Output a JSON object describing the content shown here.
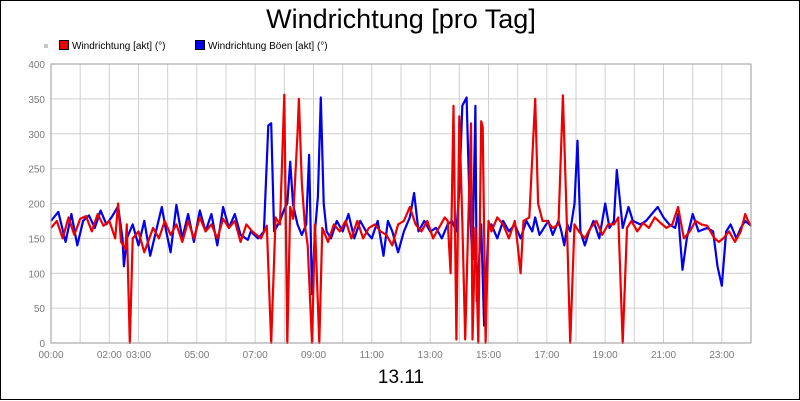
{
  "chart_data": {
    "type": "line",
    "title": "Windrichtung [pro Tag]",
    "xlabel": "13.11",
    "ylabel": "",
    "ylim": [
      0,
      400
    ],
    "yticks": [
      0,
      50,
      100,
      150,
      200,
      250,
      300,
      350,
      400
    ],
    "xlim": [
      0,
      24
    ],
    "xticks": [
      {
        "value": 0,
        "label": "00:00"
      },
      {
        "value": 2,
        "label": "02:00"
      },
      {
        "value": 3,
        "label": "03:00"
      },
      {
        "value": 5,
        "label": "05:00"
      },
      {
        "value": 7,
        "label": "07:00"
      },
      {
        "value": 9,
        "label": "09:00"
      },
      {
        "value": 11,
        "label": "11:00"
      },
      {
        "value": 13,
        "label": "13:00"
      },
      {
        "value": 15,
        "label": "15:00"
      },
      {
        "value": 17,
        "label": "17:00"
      },
      {
        "value": 19,
        "label": "19:00"
      },
      {
        "value": 21,
        "label": "21:00"
      },
      {
        "value": 23,
        "label": "23:00"
      }
    ],
    "grid": true,
    "legend_position": "top-left",
    "series": [
      {
        "name": "Windrichtung Böen [akt] (°)",
        "color": "#0000ee",
        "points": [
          [
            0.0,
            175
          ],
          [
            0.25,
            188
          ],
          [
            0.5,
            145
          ],
          [
            0.7,
            185
          ],
          [
            0.9,
            140
          ],
          [
            1.1,
            175
          ],
          [
            1.3,
            183
          ],
          [
            1.5,
            165
          ],
          [
            1.7,
            190
          ],
          [
            1.9,
            170
          ],
          [
            2.1,
            182
          ],
          [
            2.3,
            196
          ],
          [
            2.45,
            150
          ],
          [
            2.5,
            110
          ],
          [
            2.6,
            150
          ],
          [
            2.8,
            170
          ],
          [
            3.0,
            140
          ],
          [
            3.2,
            175
          ],
          [
            3.4,
            125
          ],
          [
            3.6,
            160
          ],
          [
            3.8,
            195
          ],
          [
            3.95,
            160
          ],
          [
            4.1,
            130
          ],
          [
            4.3,
            198
          ],
          [
            4.5,
            150
          ],
          [
            4.7,
            185
          ],
          [
            4.9,
            145
          ],
          [
            5.1,
            190
          ],
          [
            5.3,
            160
          ],
          [
            5.5,
            185
          ],
          [
            5.7,
            140
          ],
          [
            5.9,
            195
          ],
          [
            6.1,
            165
          ],
          [
            6.3,
            185
          ],
          [
            6.5,
            155
          ],
          [
            6.75,
            148
          ],
          [
            6.85,
            160
          ],
          [
            7.1,
            150
          ],
          [
            7.3,
            160
          ],
          [
            7.45,
            312
          ],
          [
            7.55,
            315
          ],
          [
            7.65,
            160
          ],
          [
            7.85,
            175
          ],
          [
            8.0,
            192
          ],
          [
            8.1,
            200
          ],
          [
            8.2,
            260
          ],
          [
            8.3,
            198
          ],
          [
            8.45,
            170
          ],
          [
            8.6,
            155
          ],
          [
            8.75,
            170
          ],
          [
            8.85,
            270
          ],
          [
            8.95,
            70
          ],
          [
            9.05,
            160
          ],
          [
            9.15,
            210
          ],
          [
            9.25,
            352
          ],
          [
            9.35,
            200
          ],
          [
            9.45,
            160
          ],
          [
            9.6,
            150
          ],
          [
            9.8,
            175
          ],
          [
            10.0,
            160
          ],
          [
            10.2,
            185
          ],
          [
            10.4,
            150
          ],
          [
            10.6,
            175
          ],
          [
            10.8,
            160
          ],
          [
            11.0,
            150
          ],
          [
            11.2,
            175
          ],
          [
            11.4,
            125
          ],
          [
            11.55,
            175
          ],
          [
            11.7,
            160
          ],
          [
            11.9,
            130
          ],
          [
            12.1,
            160
          ],
          [
            12.3,
            180
          ],
          [
            12.45,
            215
          ],
          [
            12.6,
            160
          ],
          [
            12.8,
            175
          ],
          [
            13.0,
            160
          ],
          [
            13.2,
            165
          ],
          [
            13.4,
            150
          ],
          [
            13.6,
            170
          ],
          [
            13.75,
            175
          ],
          [
            13.9,
            160
          ],
          [
            14.0,
            220
          ],
          [
            14.1,
            340
          ],
          [
            14.25,
            352
          ],
          [
            14.35,
            200
          ],
          [
            14.45,
            120
          ],
          [
            14.55,
            340
          ],
          [
            14.6,
            60
          ],
          [
            14.75,
            170
          ],
          [
            14.85,
            25
          ],
          [
            15.0,
            165
          ],
          [
            15.1,
            170
          ],
          [
            15.3,
            150
          ],
          [
            15.5,
            175
          ],
          [
            15.7,
            160
          ],
          [
            15.9,
            170
          ],
          [
            16.1,
            150
          ],
          [
            16.3,
            175
          ],
          [
            16.5,
            160
          ],
          [
            16.6,
            180
          ],
          [
            16.75,
            155
          ],
          [
            16.9,
            165
          ],
          [
            17.05,
            175
          ],
          [
            17.2,
            155
          ],
          [
            17.4,
            175
          ],
          [
            17.5,
            160
          ],
          [
            17.6,
            140
          ],
          [
            17.7,
            170
          ],
          [
            17.8,
            160
          ],
          [
            17.95,
            200
          ],
          [
            18.05,
            290
          ],
          [
            18.15,
            160
          ],
          [
            18.3,
            140
          ],
          [
            18.45,
            160
          ],
          [
            18.6,
            175
          ],
          [
            18.8,
            150
          ],
          [
            19.0,
            200
          ],
          [
            19.15,
            165
          ],
          [
            19.3,
            175
          ],
          [
            19.4,
            248
          ],
          [
            19.6,
            165
          ],
          [
            19.8,
            195
          ],
          [
            19.95,
            175
          ],
          [
            20.2,
            170
          ],
          [
            20.4,
            175
          ],
          [
            20.6,
            185
          ],
          [
            20.8,
            195
          ],
          [
            21.0,
            180
          ],
          [
            21.2,
            170
          ],
          [
            21.4,
            165
          ],
          [
            21.5,
            185
          ],
          [
            21.65,
            105
          ],
          [
            21.8,
            150
          ],
          [
            22.0,
            185
          ],
          [
            22.2,
            160
          ],
          [
            22.5,
            165
          ],
          [
            22.7,
            160
          ],
          [
            22.85,
            110
          ],
          [
            23.0,
            82
          ],
          [
            23.15,
            160
          ],
          [
            23.3,
            170
          ],
          [
            23.5,
            150
          ],
          [
            23.65,
            165
          ],
          [
            23.8,
            175
          ],
          [
            24.0,
            168
          ]
        ]
      },
      {
        "name": "Windrichtung [akt] (°)",
        "color": "#ee0000",
        "points": [
          [
            0.0,
            165
          ],
          [
            0.2,
            175
          ],
          [
            0.4,
            150
          ],
          [
            0.6,
            180
          ],
          [
            0.8,
            155
          ],
          [
            1.0,
            178
          ],
          [
            1.2,
            182
          ],
          [
            1.4,
            160
          ],
          [
            1.6,
            185
          ],
          [
            1.8,
            168
          ],
          [
            2.0,
            175
          ],
          [
            2.2,
            150
          ],
          [
            2.3,
            200
          ],
          [
            2.4,
            145
          ],
          [
            2.55,
            135
          ],
          [
            2.6,
            170
          ],
          [
            2.7,
            0
          ],
          [
            2.8,
            150
          ],
          [
            3.0,
            160
          ],
          [
            3.2,
            130
          ],
          [
            3.5,
            165
          ],
          [
            3.7,
            150
          ],
          [
            3.9,
            175
          ],
          [
            4.1,
            155
          ],
          [
            4.3,
            170
          ],
          [
            4.5,
            145
          ],
          [
            4.7,
            175
          ],
          [
            4.9,
            150
          ],
          [
            5.1,
            180
          ],
          [
            5.3,
            160
          ],
          [
            5.5,
            170
          ],
          [
            5.7,
            150
          ],
          [
            5.9,
            178
          ],
          [
            6.1,
            165
          ],
          [
            6.3,
            175
          ],
          [
            6.5,
            145
          ],
          [
            6.7,
            170
          ],
          [
            6.9,
            160
          ],
          [
            7.2,
            150
          ],
          [
            7.4,
            168
          ],
          [
            7.55,
            0
          ],
          [
            7.7,
            180
          ],
          [
            7.85,
            170
          ],
          [
            8.0,
            356
          ],
          [
            8.1,
            0
          ],
          [
            8.2,
            195
          ],
          [
            8.3,
            178
          ],
          [
            8.45,
            300
          ],
          [
            8.5,
            350
          ],
          [
            8.6,
            230
          ],
          [
            8.7,
            170
          ],
          [
            8.8,
            140
          ],
          [
            8.95,
            0
          ],
          [
            9.05,
            170
          ],
          [
            9.2,
            0
          ],
          [
            9.3,
            165
          ],
          [
            9.5,
            145
          ],
          [
            9.7,
            170
          ],
          [
            9.9,
            160
          ],
          [
            10.1,
            175
          ],
          [
            10.3,
            150
          ],
          [
            10.5,
            175
          ],
          [
            10.7,
            150
          ],
          [
            10.9,
            165
          ],
          [
            11.1,
            170
          ],
          [
            11.3,
            160
          ],
          [
            11.5,
            155
          ],
          [
            11.7,
            140
          ],
          [
            11.9,
            170
          ],
          [
            12.1,
            175
          ],
          [
            12.3,
            195
          ],
          [
            12.5,
            170
          ],
          [
            12.7,
            160
          ],
          [
            12.9,
            175
          ],
          [
            13.1,
            150
          ],
          [
            13.3,
            165
          ],
          [
            13.5,
            180
          ],
          [
            13.6,
            175
          ],
          [
            13.7,
            100
          ],
          [
            13.8,
            340
          ],
          [
            13.9,
            5
          ],
          [
            14.0,
            325
          ],
          [
            14.1,
            175
          ],
          [
            14.2,
            5
          ],
          [
            14.3,
            165
          ],
          [
            14.4,
            315
          ],
          [
            14.45,
            5
          ],
          [
            14.55,
            165
          ],
          [
            14.65,
            0
          ],
          [
            14.75,
            318
          ],
          [
            14.8,
            310
          ],
          [
            14.9,
            0
          ],
          [
            15.0,
            175
          ],
          [
            15.1,
            160
          ],
          [
            15.3,
            180
          ],
          [
            15.5,
            170
          ],
          [
            15.7,
            150
          ],
          [
            15.9,
            175
          ],
          [
            16.0,
            140
          ],
          [
            16.1,
            100
          ],
          [
            16.2,
            175
          ],
          [
            16.4,
            180
          ],
          [
            16.6,
            350
          ],
          [
            16.7,
            200
          ],
          [
            16.85,
            175
          ],
          [
            17.0,
            175
          ],
          [
            17.2,
            165
          ],
          [
            17.4,
            170
          ],
          [
            17.55,
            355
          ],
          [
            17.7,
            150
          ],
          [
            17.8,
            0
          ],
          [
            17.95,
            170
          ],
          [
            18.1,
            160
          ],
          [
            18.3,
            150
          ],
          [
            18.5,
            165
          ],
          [
            18.7,
            175
          ],
          [
            18.9,
            155
          ],
          [
            19.1,
            170
          ],
          [
            19.3,
            170
          ],
          [
            19.45,
            180
          ],
          [
            19.6,
            0
          ],
          [
            19.75,
            165
          ],
          [
            19.9,
            175
          ],
          [
            20.1,
            160
          ],
          [
            20.3,
            172
          ],
          [
            20.5,
            165
          ],
          [
            20.7,
            180
          ],
          [
            20.9,
            172
          ],
          [
            21.1,
            165
          ],
          [
            21.3,
            170
          ],
          [
            21.5,
            195
          ],
          [
            21.7,
            150
          ],
          [
            21.9,
            160
          ],
          [
            22.1,
            175
          ],
          [
            22.3,
            170
          ],
          [
            22.5,
            168
          ],
          [
            22.75,
            150
          ],
          [
            22.9,
            145
          ],
          [
            23.05,
            150
          ],
          [
            23.25,
            160
          ],
          [
            23.45,
            145
          ],
          [
            23.65,
            160
          ],
          [
            23.8,
            185
          ],
          [
            23.9,
            175
          ],
          [
            24.0,
            168
          ]
        ]
      }
    ]
  },
  "legend": {
    "items": [
      {
        "label": "Windrichtung [akt] (°)",
        "color": "#ee0000"
      },
      {
        "label": "Windrichtung Böen [akt] (°)",
        "color": "#0000ee"
      }
    ]
  }
}
